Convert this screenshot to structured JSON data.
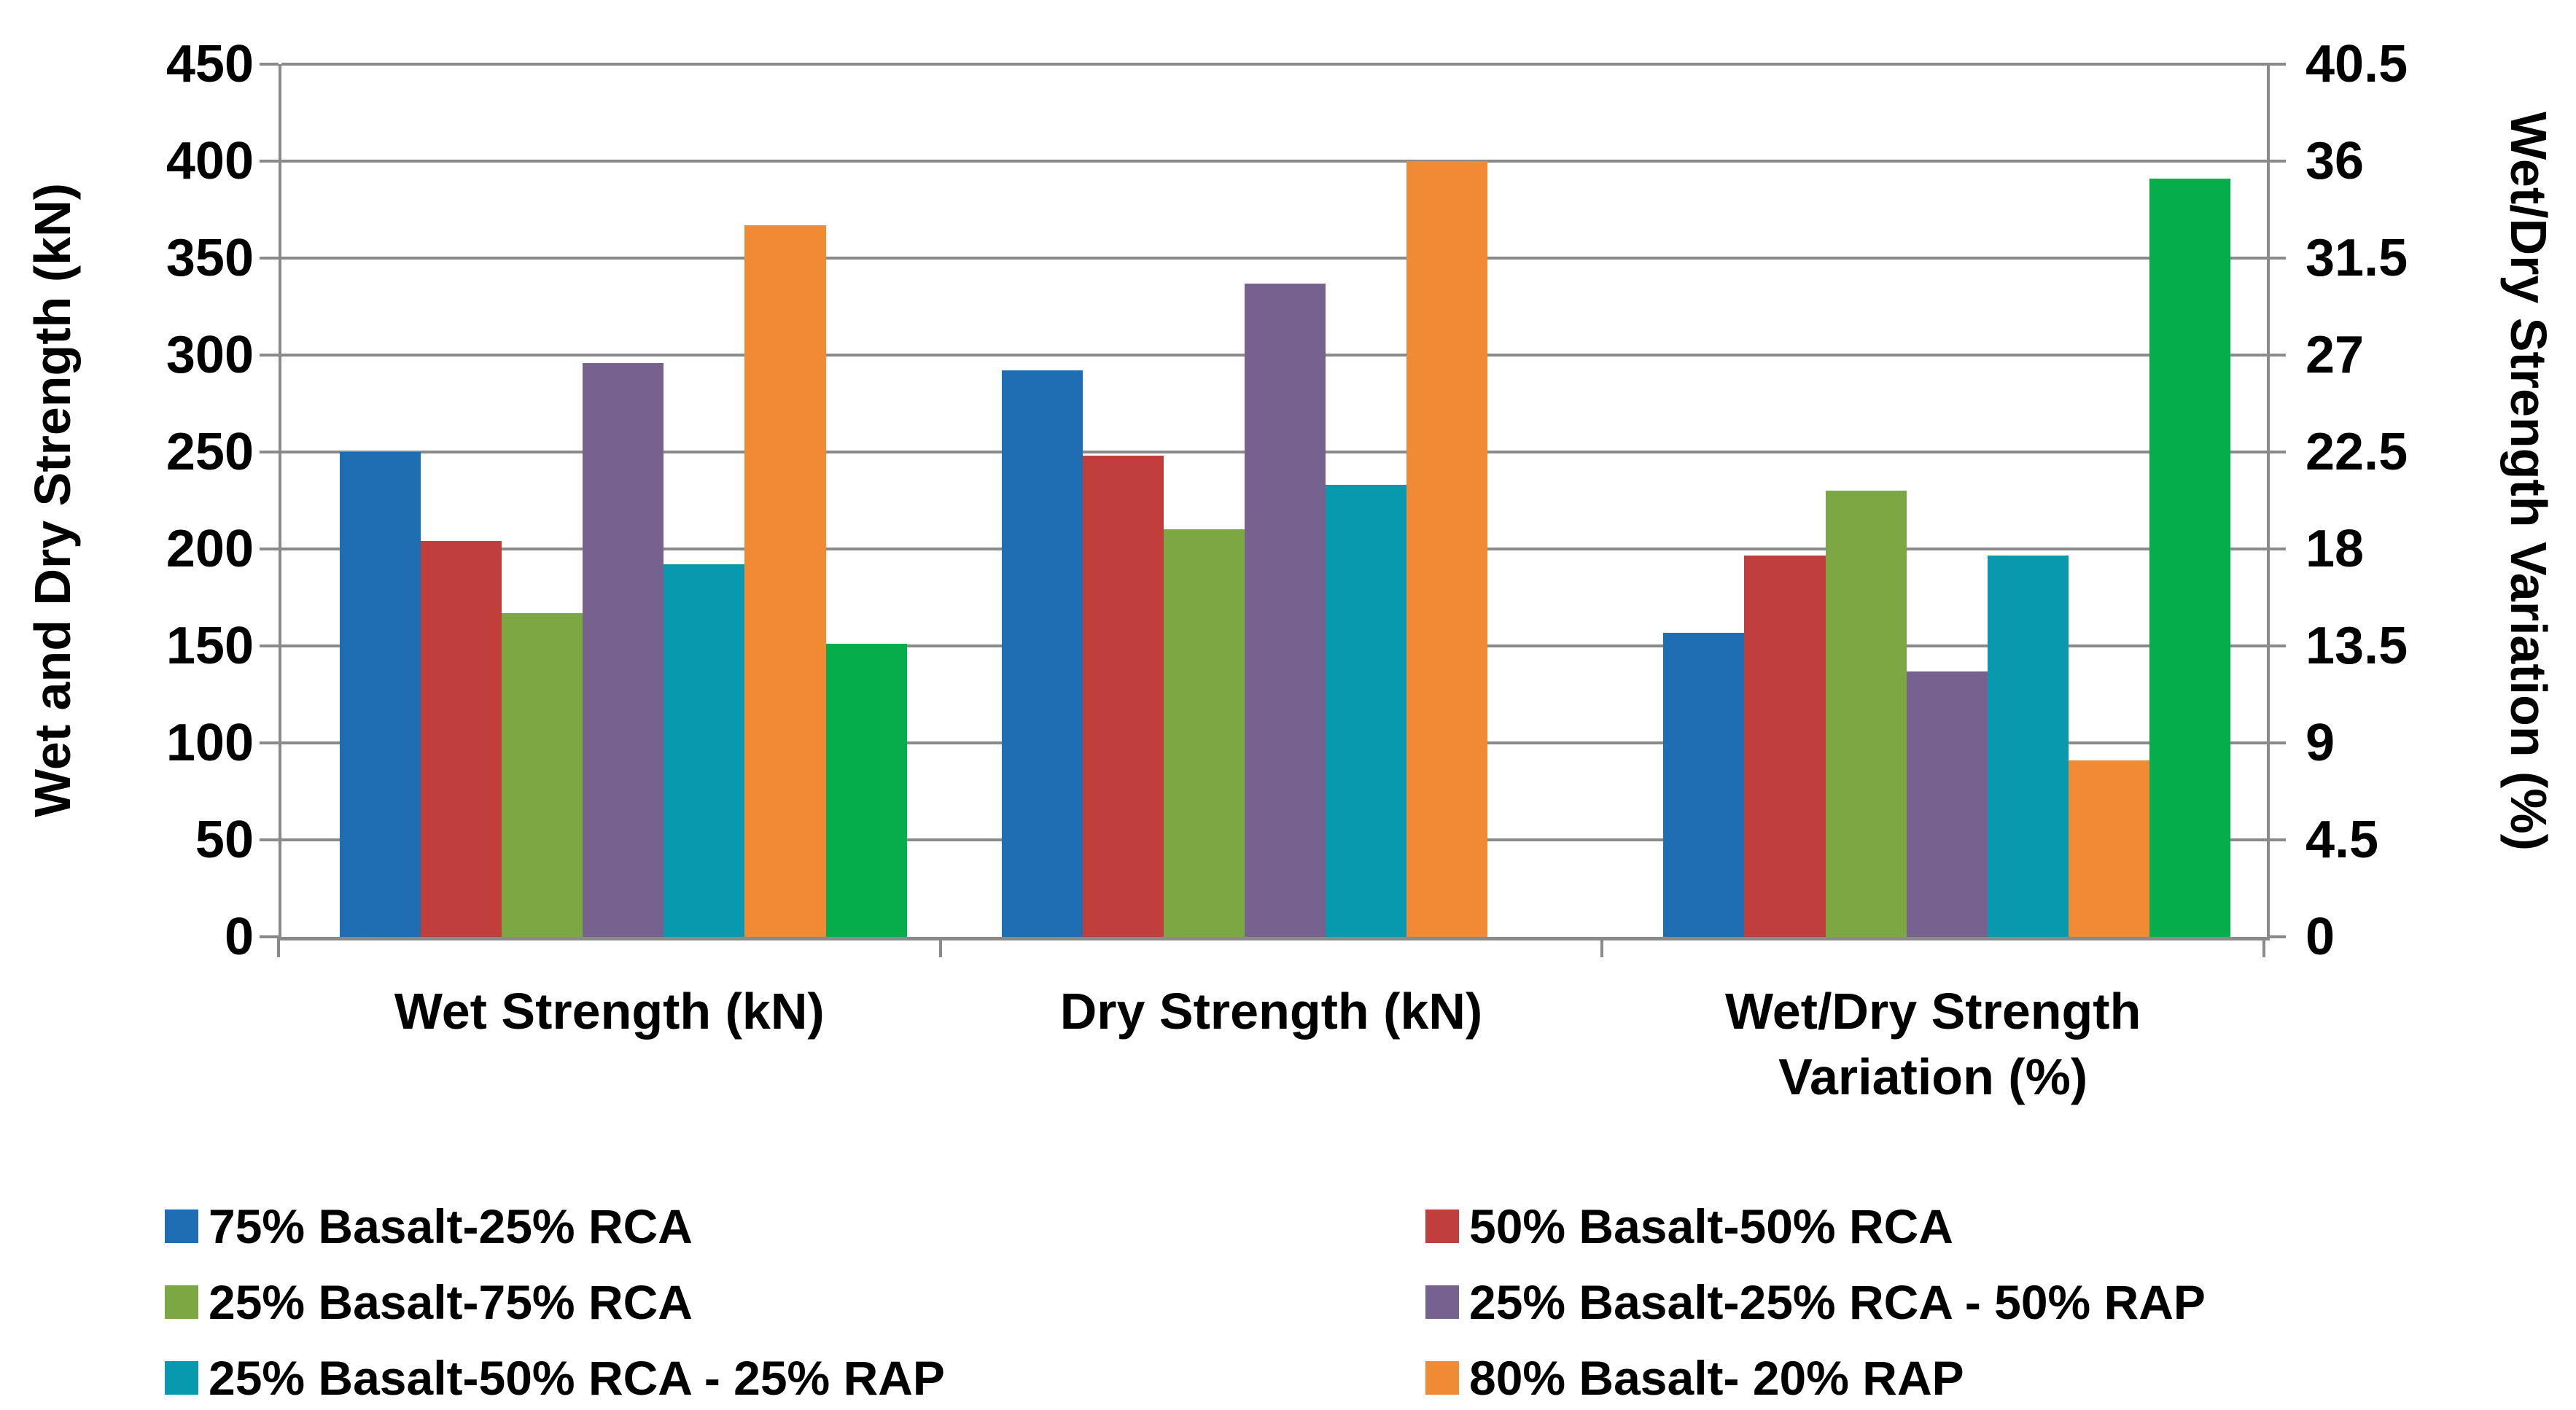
{
  "chart_data": {
    "type": "bar",
    "title": "",
    "categories": [
      "Wet Strength (kN)",
      "Dry Strength (kN)",
      "Wet/Dry Strength Variation (%)"
    ],
    "category_value_axis": [
      "left",
      "left",
      "right"
    ],
    "series": [
      {
        "name": "75% Basalt-25% RCA",
        "color": "#1f6db3",
        "in_legend": true,
        "values": [
          250,
          292,
          14.1
        ]
      },
      {
        "name": "50% Basalt-50% RCA",
        "color": "#c03f3c",
        "in_legend": true,
        "values": [
          204,
          248,
          17.7
        ]
      },
      {
        "name": "25% Basalt-75% RCA",
        "color": "#7ca843",
        "in_legend": true,
        "values": [
          167,
          210,
          20.7
        ]
      },
      {
        "name": "25% Basalt-25% RCA - 50% RAP",
        "color": "#77618f",
        "in_legend": true,
        "values": [
          296,
          337,
          12.3
        ]
      },
      {
        "name": "25% Basalt-50% RCA - 25% RAP",
        "color": "#0999af",
        "in_legend": true,
        "values": [
          192,
          233,
          17.7
        ]
      },
      {
        "name": "80% Basalt- 20% RAP",
        "color": "#f18a35",
        "in_legend": true,
        "values": [
          367,
          400,
          8.2
        ]
      },
      {
        "name": "",
        "color": "#05ad4b",
        "in_legend": false,
        "values": [
          151,
          null,
          35.2
        ]
      }
    ],
    "axes": {
      "left": {
        "label": "Wet and Dry Strength (kN)",
        "min": 0,
        "max": 450,
        "step": 50,
        "tick_labels": [
          "450",
          "400",
          "350",
          "300",
          "250",
          "200",
          "150",
          "100",
          "50",
          "0"
        ]
      },
      "right": {
        "label": "Wet/Dry Strength Variation (%)",
        "min": 0,
        "max": 40.5,
        "step": 4.5,
        "tick_labels": [
          "40.5",
          "36",
          "31.5",
          "27",
          "22.5",
          "18",
          "13.5",
          "9",
          "4.5",
          "0"
        ]
      }
    },
    "grid": true,
    "grid_color": "#8a8a8a",
    "legend_position": "bottom",
    "legend_columns": 2
  }
}
